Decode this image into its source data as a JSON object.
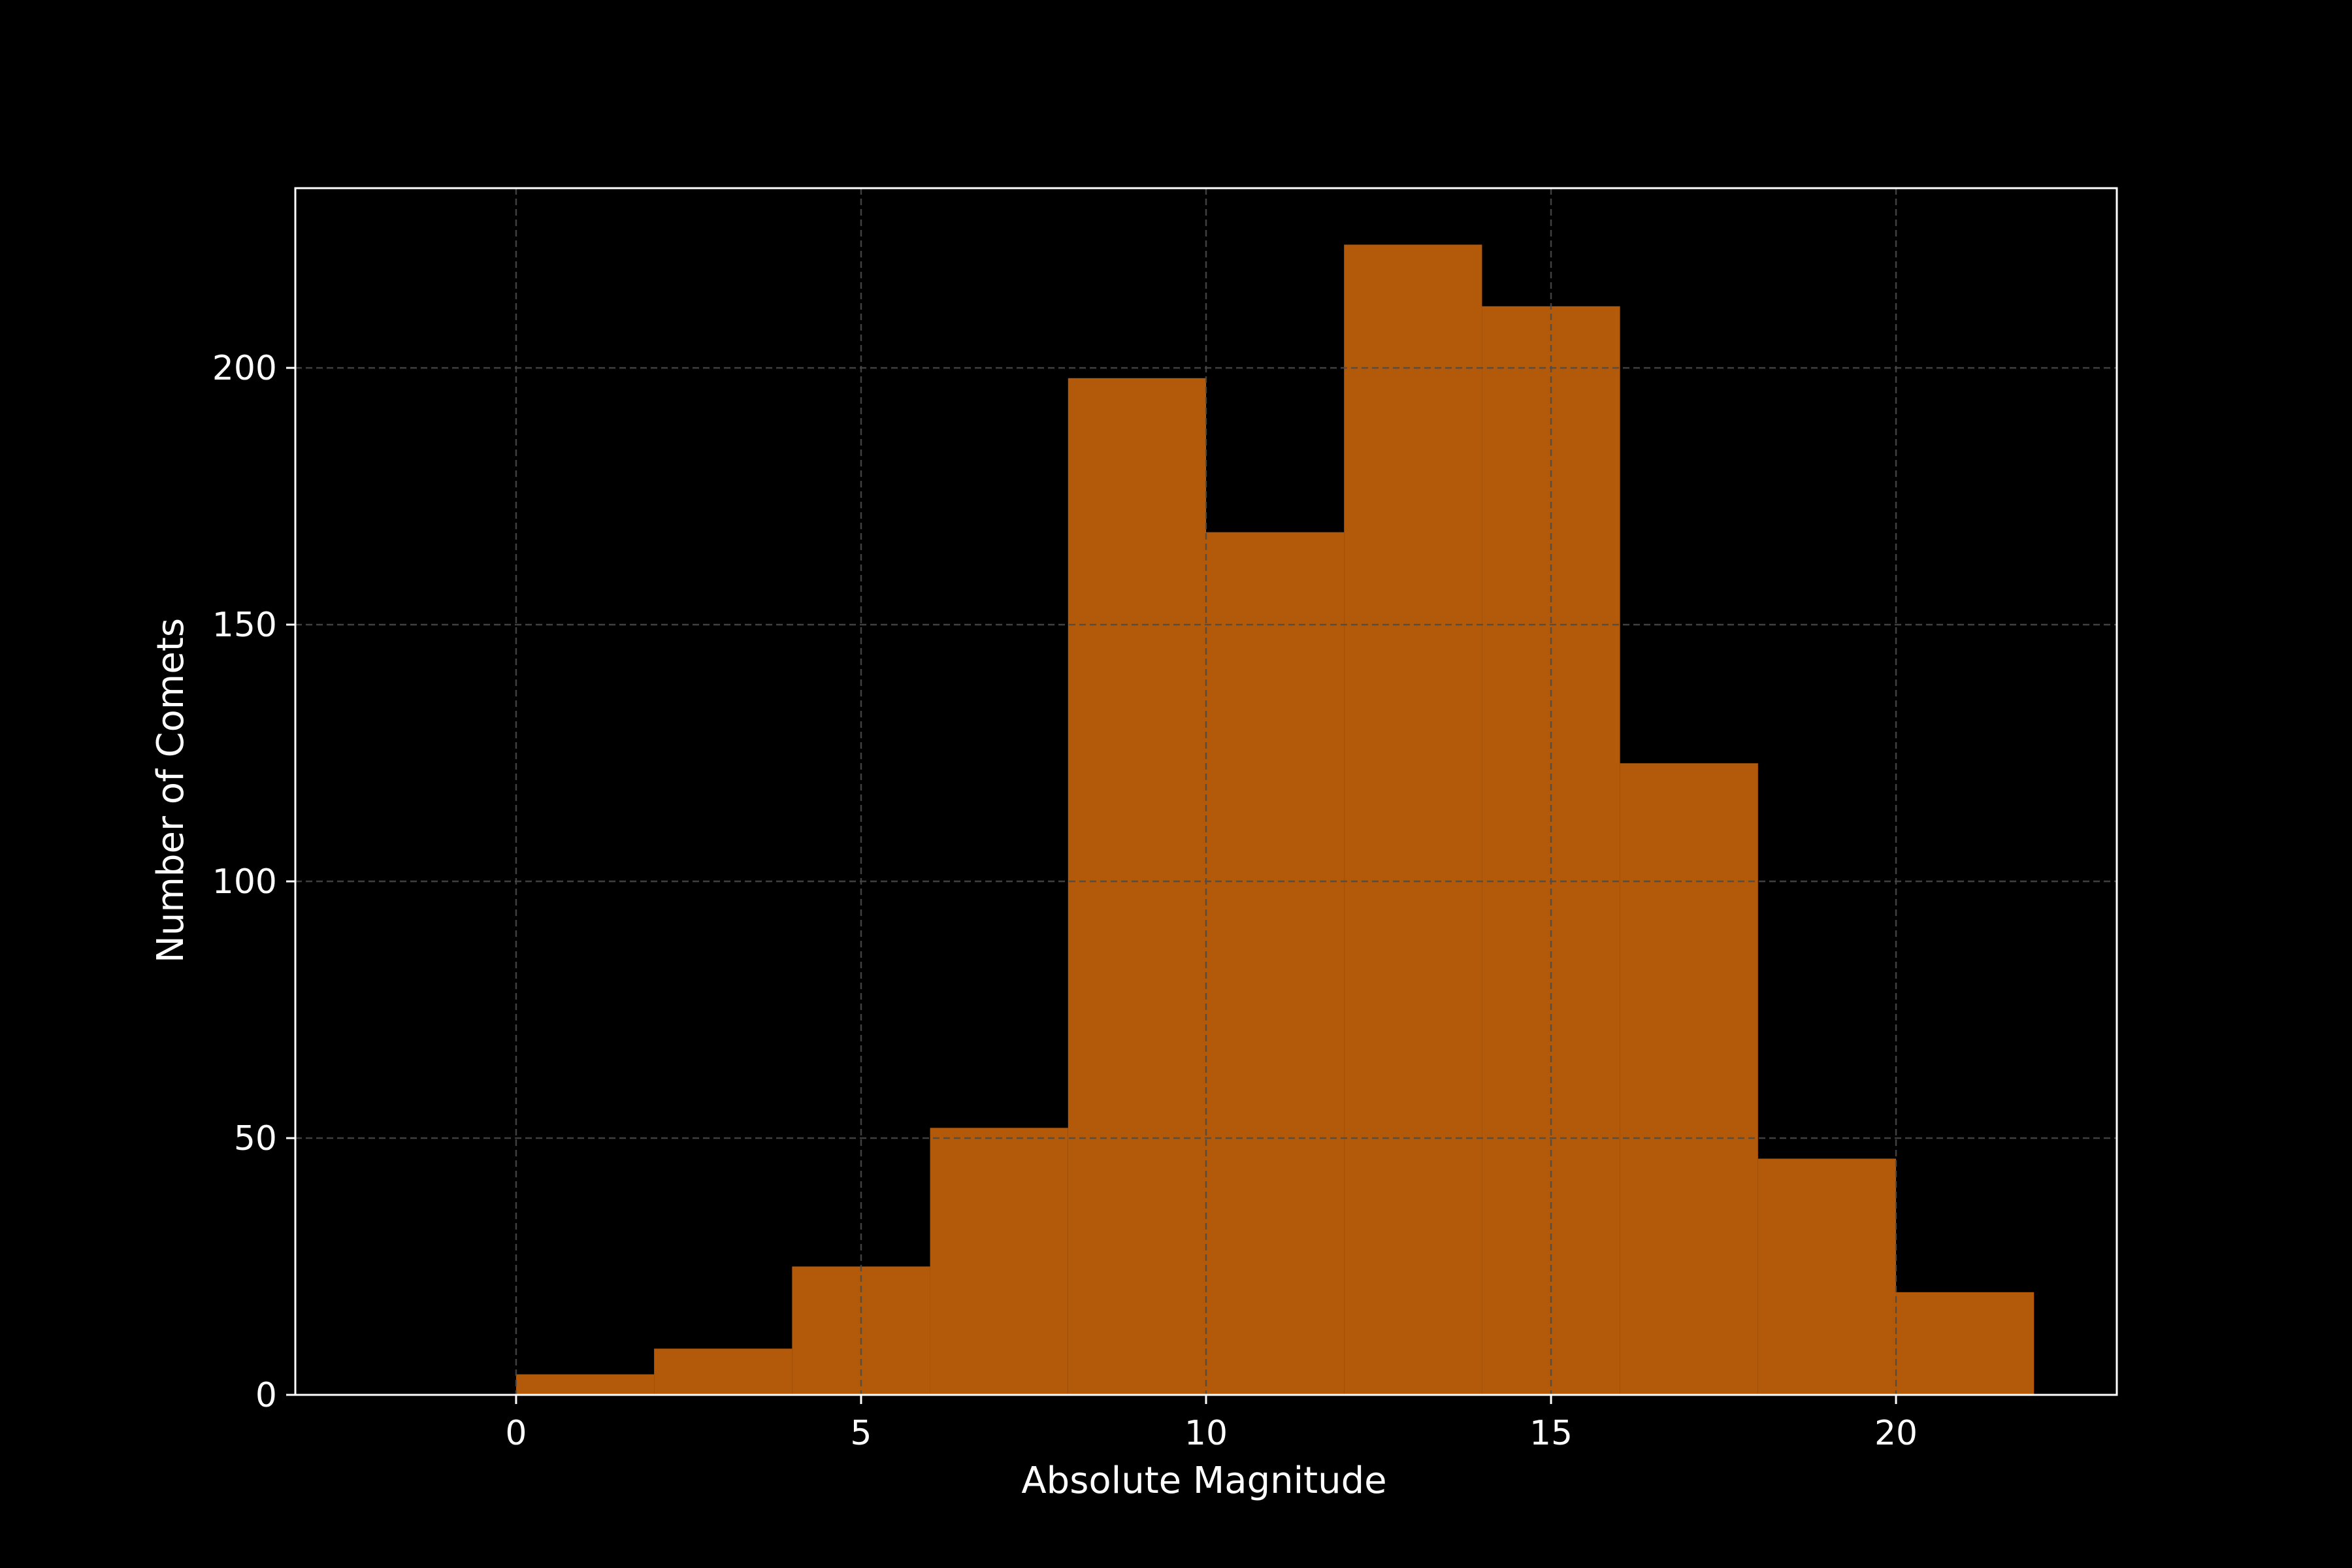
{
  "colors": {
    "background": "#000000",
    "bar_fill": "#b35a0a",
    "axes": "#ffffff",
    "grid": "#4a4a4a"
  },
  "chart_data": {
    "type": "bar",
    "title": "",
    "xlabel": "Absolute Magnitude",
    "ylabel": "Number of Comets",
    "xlim": [
      -3.2,
      23.2
    ],
    "ylim": [
      0,
      235
    ],
    "xticks": [
      0,
      5,
      10,
      15,
      20
    ],
    "yticks": [
      0,
      50,
      100,
      150,
      200
    ],
    "grid": true,
    "bin_edges": [
      0,
      2,
      4,
      6,
      8,
      10,
      12,
      14,
      16,
      18,
      20,
      22
    ],
    "values": [
      4,
      9,
      25,
      52,
      198,
      168,
      224,
      212,
      123,
      46,
      20
    ]
  }
}
